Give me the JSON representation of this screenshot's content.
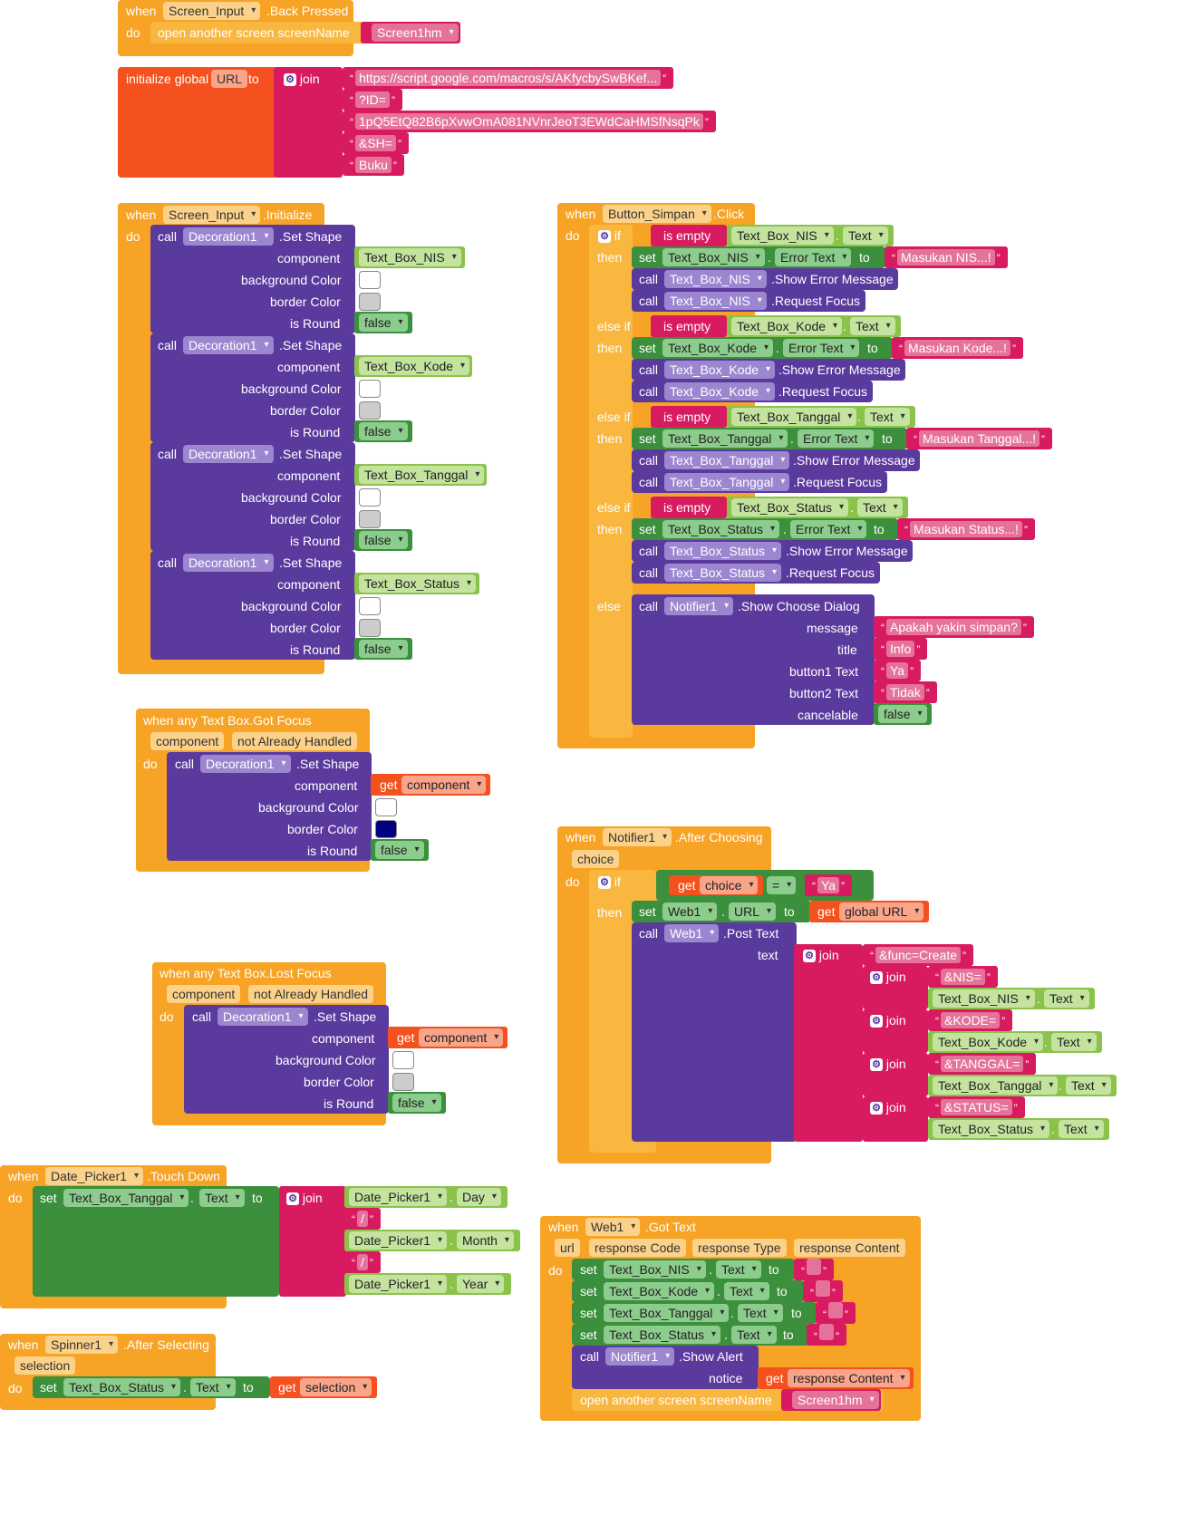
{
  "kw": {
    "when": "when",
    "do": "do",
    "call": "call",
    "set": "set",
    "to": "to",
    "get": "get",
    "if": "if",
    "then": "then",
    "else_if": "else if",
    "else": "else",
    "join": "join",
    "is_empty": "is empty",
    "dot": ".",
    "eq": "=",
    "open_screen": "open another screen  screenName",
    "set_shape": ".Set Shape",
    "component": "component",
    "background_color": "background Color",
    "border_color": "border Color",
    "is_round": "is Round",
    "false": "false",
    "initialize_global": "initialize global",
    "when_any_got_focus": "when any Text Box.Got Focus",
    "when_any_lost_focus": "when any Text Box.Lost Focus",
    "not_already_handled": "not Already Handled",
    "show_error_message": ".Show Error Message",
    "request_focus": ".Request Focus",
    "show_choose_dialog": ".Show Choose Dialog",
    "message": "message",
    "title": "title",
    "button1_text": "button1 Text",
    "button2_text": "button2 Text",
    "cancelable": "cancelable",
    "post_text": ".Post Text",
    "text": "text",
    "show_alert": ".Show Alert",
    "notice": "notice",
    "quote": "“",
    "quote_close": "”",
    "gear_icon": "gear-icon"
  },
  "components": {
    "screen_input": "Screen_Input",
    "screen1hm": "Screen1hm",
    "decoration1": "Decoration1",
    "tb_nis": "Text_Box_NIS",
    "tb_kode": "Text_Box_Kode",
    "tb_tanggal": "Text_Box_Tanggal",
    "tb_status": "Text_Box_Status",
    "button_simpan": "Button_Simpan",
    "notifier1": "Notifier1",
    "web1": "Web1",
    "date_picker1": "Date_Picker1",
    "spinner1": "Spinner1"
  },
  "props": {
    "text": "Text",
    "error_text": "Error Text",
    "url": "URL",
    "day": "Day",
    "month": "Month",
    "year": "Year"
  },
  "events": {
    "back_pressed": ".Back Pressed",
    "initialize": ".Initialize",
    "click": ".Click",
    "after_choosing": ".After Choosing",
    "got_text": ".Got Text",
    "touch_down": ".Touch Down",
    "after_selecting": ".After Selecting"
  },
  "params": {
    "component": "component",
    "not_already_handled": "not Already Handled",
    "choice": "choice",
    "url": "url",
    "response_code": "response Code",
    "response_type": "response Type",
    "response_content": "response Content",
    "selection": "selection"
  },
  "global": {
    "name": "URL",
    "get_label": "global URL",
    "strings": [
      "https://script.google.com/macros/s/AKfycbySwBKef...",
      "?ID=",
      "1pQ5EtQ82B6pXvwOmA081NVnrJeoT3EWdCaHMSfNsqPk",
      "&SH=",
      "Buku"
    ]
  },
  "messages": {
    "nis": "Masukan NIS...!",
    "kode": "Masukan Kode...!",
    "tanggal": "Masukan Tanggal...!",
    "status": "Masukan Status...!",
    "confirm": "Apakah yakin simpan?",
    "info": "Info",
    "ya": "Ya",
    "tidak": "Tidak",
    "slash": "/",
    "empty": ""
  },
  "post_params": {
    "func": "&func=Create",
    "nis": "&NIS=",
    "kode": "&KODE=",
    "tanggal": "&TANGGAL=",
    "status": "&STATUS="
  },
  "colors": {
    "event": "#f7a325",
    "component_call": "#5b3a9e",
    "setter": "#3c8f3c",
    "getter": "#8bc34a",
    "text": "#d81b60",
    "variable": "#f4511e",
    "swatch_white": "#ffffff",
    "swatch_grey": "#cccccc",
    "swatch_navy": "#000080"
  }
}
